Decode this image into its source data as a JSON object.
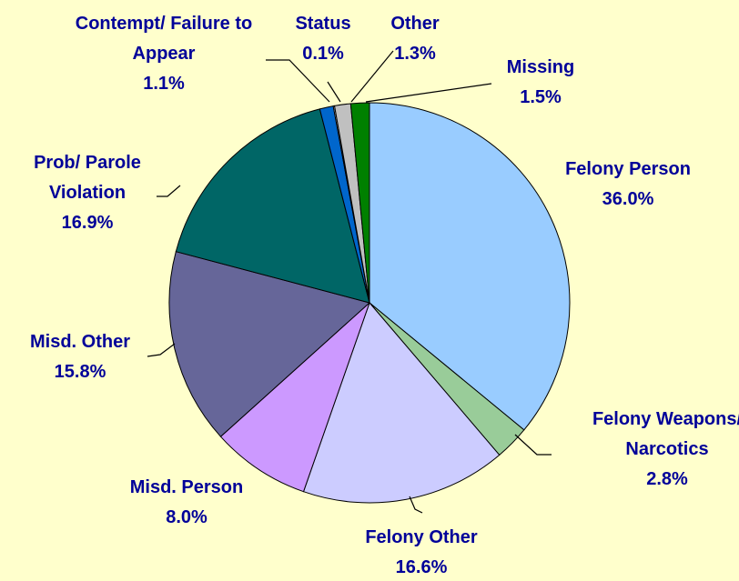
{
  "chart_data": {
    "type": "pie",
    "categories": [
      "Felony Person",
      "Felony Weapons/ Narcotics",
      "Felony Other",
      "Misd. Person",
      "Misd. Other",
      "Prob/ Parole Violation",
      "Contempt/ Failure to Appear",
      "Status",
      "Other",
      "Missing"
    ],
    "values": [
      36.0,
      2.8,
      16.6,
      8.0,
      15.8,
      16.9,
      1.1,
      0.1,
      1.3,
      1.5
    ],
    "value_labels": [
      "36.0%",
      "2.8%",
      "16.6%",
      "8.0%",
      "15.8%",
      "16.9%",
      "1.1%",
      "0.1%",
      "1.3%",
      "1.5%"
    ],
    "colors": [
      "#99ccff",
      "#99cc99",
      "#ccccff",
      "#cc99ff",
      "#666699",
      "#006666",
      "#0066cc",
      "#ffffff",
      "#c0c0c0",
      "#008000"
    ]
  }
}
